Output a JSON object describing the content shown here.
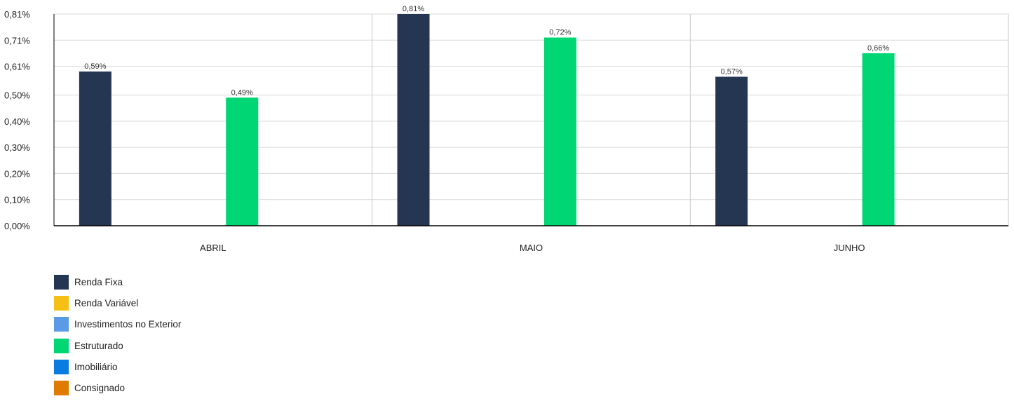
{
  "chart_data": {
    "type": "bar",
    "categories": [
      "ABRIL",
      "MAIO",
      "JUNHO"
    ],
    "series": [
      {
        "name": "Renda Fixa",
        "color": "#253653",
        "values": [
          0.59,
          0.81,
          0.57
        ],
        "labels": [
          "0,59%",
          "0,81%",
          "0,57%"
        ]
      },
      {
        "name": "Renda Variável",
        "color": "#F5C013",
        "values": [
          null,
          null,
          null
        ],
        "labels": [
          "",
          "",
          ""
        ]
      },
      {
        "name": "Investimentos no Exterior",
        "color": "#5B9BE6",
        "values": [
          null,
          null,
          null
        ],
        "labels": [
          "",
          "",
          ""
        ]
      },
      {
        "name": "Estruturado",
        "color": "#00D673",
        "values": [
          0.49,
          0.72,
          0.66
        ],
        "labels": [
          "0,49%",
          "0,72%",
          "0,66%"
        ]
      },
      {
        "name": "Imobiliário",
        "color": "#0A7BE0",
        "values": [
          null,
          null,
          null
        ],
        "labels": [
          "",
          "",
          ""
        ]
      },
      {
        "name": "Consignado",
        "color": "#DE7B00",
        "values": [
          null,
          null,
          null
        ],
        "labels": [
          "",
          "",
          ""
        ]
      }
    ],
    "yticks": [
      {
        "value": 0,
        "label": "0,00%"
      },
      {
        "value": 0.1,
        "label": "0,10%"
      },
      {
        "value": 0.2,
        "label": "0,20%"
      },
      {
        "value": 0.3,
        "label": "0,30%"
      },
      {
        "value": 0.4,
        "label": "0,40%"
      },
      {
        "value": 0.5,
        "label": "0,50%"
      },
      {
        "value": 0.61,
        "label": "0,61%"
      },
      {
        "value": 0.71,
        "label": "0,71%"
      },
      {
        "value": 0.81,
        "label": "0,81%"
      }
    ],
    "ylim": [
      0,
      0.81
    ],
    "title": "",
    "xlabel": "",
    "ylabel": "",
    "grid": true,
    "legend_position": "bottom-left"
  }
}
